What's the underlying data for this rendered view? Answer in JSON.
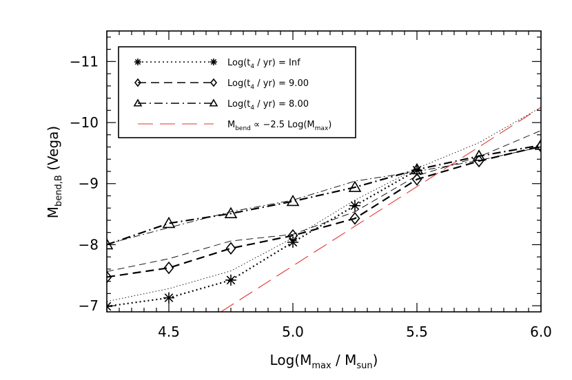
{
  "chart_data": {
    "type": "line",
    "xlabel": {
      "base": "Log(M",
      "sub1": "max",
      "mid": " / M",
      "sub2": "sun",
      "end": ")"
    },
    "ylabel": {
      "base": "M",
      "sub": "bend,B",
      "end": " (Vega)"
    },
    "xlim": [
      4.25,
      6.0
    ],
    "ylim": [
      -6.9,
      -11.5
    ],
    "y_axis_inverted": true,
    "grid": false,
    "legend_position": "top-left",
    "x_ticks": [
      {
        "value": 4.5,
        "label": "4.5"
      },
      {
        "value": 5.0,
        "label": "5.0"
      },
      {
        "value": 5.5,
        "label": "5.5"
      },
      {
        "value": 6.0,
        "label": "6.0"
      }
    ],
    "y_ticks": [
      {
        "value": -7,
        "label": "−7"
      },
      {
        "value": -8,
        "label": "−8"
      },
      {
        "value": -9,
        "label": "−9"
      },
      {
        "value": -10,
        "label": "−10"
      },
      {
        "value": -11,
        "label": "−11"
      }
    ],
    "series": [
      {
        "name": {
          "pre": "Log(t",
          "sub": "4",
          "post": " / yr) =  Inf"
        },
        "dash": "dotted",
        "marker": "asterisk",
        "color": "#000000",
        "x": [
          4.25,
          4.5,
          4.75,
          5.0,
          5.25,
          5.5
        ],
        "y": [
          -6.99,
          -7.13,
          -7.42,
          -8.04,
          -8.64,
          -9.22
        ],
        "trend_x": [
          4.25,
          4.5,
          4.75,
          5.0,
          5.25,
          5.5,
          5.75,
          6.0
        ],
        "trend_y": [
          -7.07,
          -7.28,
          -7.57,
          -8.11,
          -8.73,
          -9.25,
          -9.67,
          -10.25
        ]
      },
      {
        "name": {
          "pre": "Log(t",
          "sub": "4",
          "post": " / yr) = 9.00"
        },
        "dash": "dashed",
        "marker": "diamond",
        "color": "#000000",
        "x": [
          4.25,
          4.5,
          4.75,
          5.0,
          5.25,
          5.5,
          5.75,
          6.0
        ],
        "y": [
          -7.47,
          -7.62,
          -7.94,
          -8.15,
          -8.43,
          -9.07,
          -9.37,
          -9.61
        ],
        "trend_x": [
          4.25,
          4.5,
          4.75,
          5.0,
          5.25,
          5.5,
          5.75,
          6.0
        ],
        "trend_y": [
          -7.56,
          -7.77,
          -8.06,
          -8.17,
          -8.54,
          -9.13,
          -9.44,
          -9.87
        ]
      },
      {
        "name": {
          "pre": "Log(t",
          "sub": "4",
          "post": " / yr) = 8.00"
        },
        "dash": "dashdot",
        "marker": "triangle",
        "color": "#000000",
        "x": [
          4.25,
          4.5,
          4.75,
          5.0,
          5.25,
          5.5,
          5.75,
          6.0
        ],
        "y": [
          -8.0,
          -8.35,
          -8.51,
          -8.71,
          -8.94,
          -9.23,
          -9.45,
          -9.63
        ],
        "trend_x": [
          4.25,
          4.5,
          4.75,
          5.0,
          5.25,
          5.5,
          5.75,
          6.0
        ],
        "trend_y": [
          -8.01,
          -8.28,
          -8.54,
          -8.73,
          -9.04,
          -9.2,
          -9.38,
          -9.6
        ]
      },
      {
        "name": {
          "pre": "M",
          "sub": "bend",
          "post": " ∝ −2.5 Log(M",
          "sub2": "max",
          "post2": ")"
        },
        "dash": "longdash",
        "marker": "none",
        "color": "#e53030",
        "x": [
          4.71,
          6.0
        ],
        "y": [
          -6.9,
          -10.25
        ]
      }
    ]
  }
}
